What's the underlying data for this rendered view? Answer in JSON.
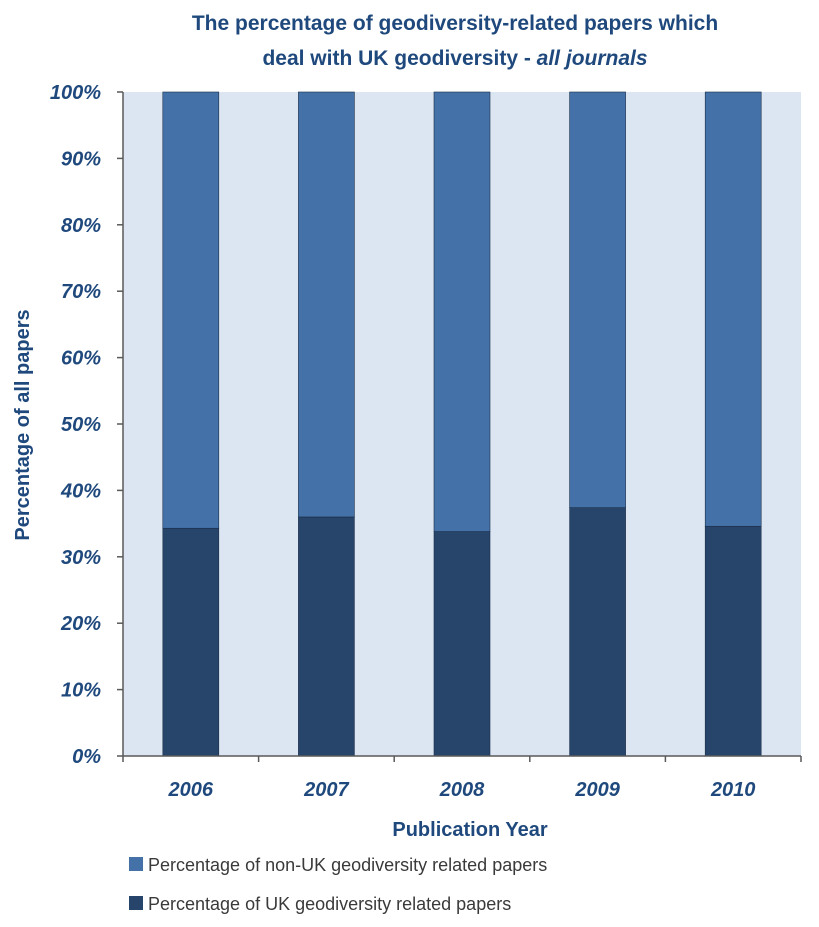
{
  "chart_data": {
    "type": "bar",
    "stacked": true,
    "title_line1": "The percentage of geodiversity-related papers which",
    "title_line2_main": "deal with UK geodiversity - ",
    "title_line2_italic": "all journals",
    "xlabel": "Publication Year",
    "ylabel": "Percentage of all papers",
    "categories": [
      "2006",
      "2007",
      "2008",
      "2009",
      "2010"
    ],
    "series": [
      {
        "name": "Percentage of UK geodiversity related papers",
        "values": [
          34.3,
          36.0,
          33.8,
          37.4,
          34.6
        ],
        "color": "#27446A"
      },
      {
        "name": "Percentage of non-UK geodiversity related papers",
        "values": [
          65.7,
          64.0,
          66.2,
          62.6,
          65.4
        ],
        "color": "#4471A7"
      }
    ],
    "ylim": [
      0,
      100
    ],
    "yticks": [
      "0%",
      "10%",
      "20%",
      "30%",
      "40%",
      "50%",
      "60%",
      "70%",
      "80%",
      "90%",
      "100%"
    ],
    "plot_background": "#DCE6F2",
    "legend_position": "bottom",
    "legend": [
      {
        "label": "Percentage of non-UK geodiversity related papers",
        "color": "#4471A7"
      },
      {
        "label": "Percentage of UK geodiversity related papers",
        "color": "#27446A"
      }
    ]
  }
}
